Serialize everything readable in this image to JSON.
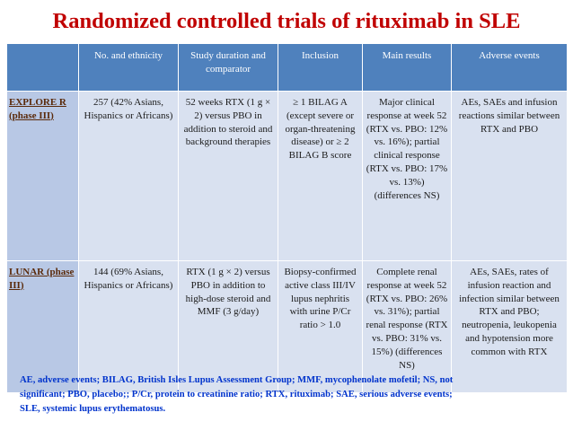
{
  "title": "Randomized controlled trials of rituximab in SLE",
  "table": {
    "headers": [
      "",
      "No. and ethnicity",
      "Study duration and comparator",
      "Inclusion",
      "Main results",
      "Adverse events"
    ],
    "rows": [
      {
        "trial": "EXPLORE R (phase III)",
        "ethnicity": "257 (42% Asians, Hispanics or Africans)",
        "duration": "52 weeks RTX (1 g × 2) versus PBO in addition to steroid and background therapies",
        "inclusion": "≥ 1 BILAG A (except severe or organ-threatening disease) or ≥ 2 BILAG B score",
        "results": "Major clinical response at week 52 (RTX vs. PBO: 12% vs. 16%); partial clinical response (RTX vs. PBO: 17% vs. 13%) (differences NS)",
        "adverse": "AEs, SAEs and infusion reactions similar between RTX and PBO"
      },
      {
        "trial": "LUNAR (phase III)",
        "ethnicity": "144 (69% Asians, Hispanics or Africans)",
        "duration": "RTX (1 g × 2) versus PBO in addition to high-dose steroid and MMF (3 g/day)",
        "inclusion": "Biopsy-confirmed active class III/IV lupus nephritis with urine P/Cr ratio > 1.0",
        "results": "Complete renal response at week 52 (RTX vs. PBO: 26% vs. 31%); partial renal response (RTX vs. PBO: 31% vs. 15%) (differences NS)",
        "adverse": "AEs, SAEs, rates of infusion reaction and infection similar between RTX and PBO; neutropenia, leukopenia and hypotension more common with RTX"
      }
    ]
  },
  "footnote": {
    "line1": "AE, adverse events; BILAG, British Isles Lupus Assessment Group; MMF, mycophenolate mofetil; NS, not",
    "line2": "significant; PBO, placebo;; P/Cr, protein to creatinine ratio; RTX, rituximab; SAE, serious adverse events;",
    "line3": "SLE, systemic lupus erythematosus."
  },
  "colors": {
    "title": "#c00000",
    "header_bg": "#4f81bd",
    "cell_bg": "#d9e1f0",
    "trial_bg": "#b8c8e5",
    "footnote": "#0033cc"
  }
}
